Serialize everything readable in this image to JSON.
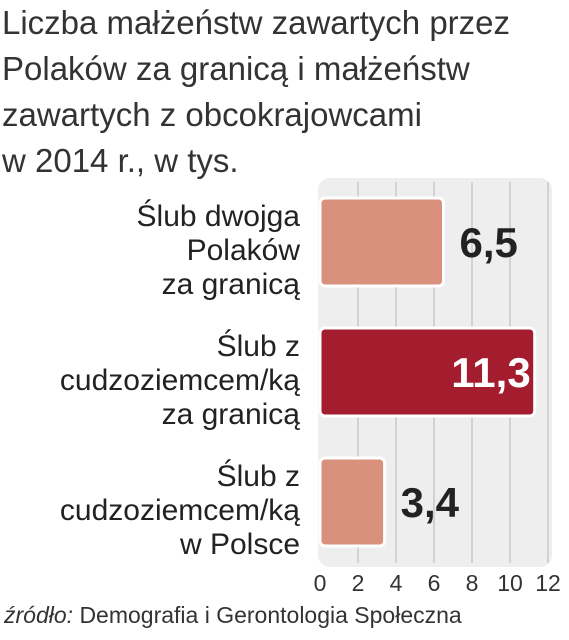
{
  "title_lines": [
    "Liczba małżeństw zawartych przez",
    "Polaków za granicą i małżeństw",
    "zawartych z obcokrajowcami",
    "w 2014 r., w tys."
  ],
  "source": {
    "prefix": "źródło: ",
    "text": "Demografia i Gerontologia Społeczna"
  },
  "colors": {
    "bar_light": "#d9917e",
    "bar_dark": "#a31d2e",
    "plot_bg": "#eeeeee",
    "grid": "#c8c8c8"
  },
  "chart_data": {
    "type": "bar",
    "orientation": "horizontal",
    "categories": [
      [
        "Ślub dwojga",
        "Polaków",
        "za granicą"
      ],
      [
        "Ślub z",
        "cudzoziemcem/ką",
        "za granicą"
      ],
      [
        "Ślub z",
        "cudzoziemcem/ką",
        "w Polsce"
      ]
    ],
    "values": [
      6.5,
      11.3,
      3.4
    ],
    "value_labels": [
      "6,5",
      "11,3",
      "3,4"
    ],
    "highlight_index": 1,
    "xlim": [
      0,
      12
    ],
    "xticks": [
      0,
      2,
      4,
      6,
      8,
      10,
      12
    ],
    "grid": true
  }
}
